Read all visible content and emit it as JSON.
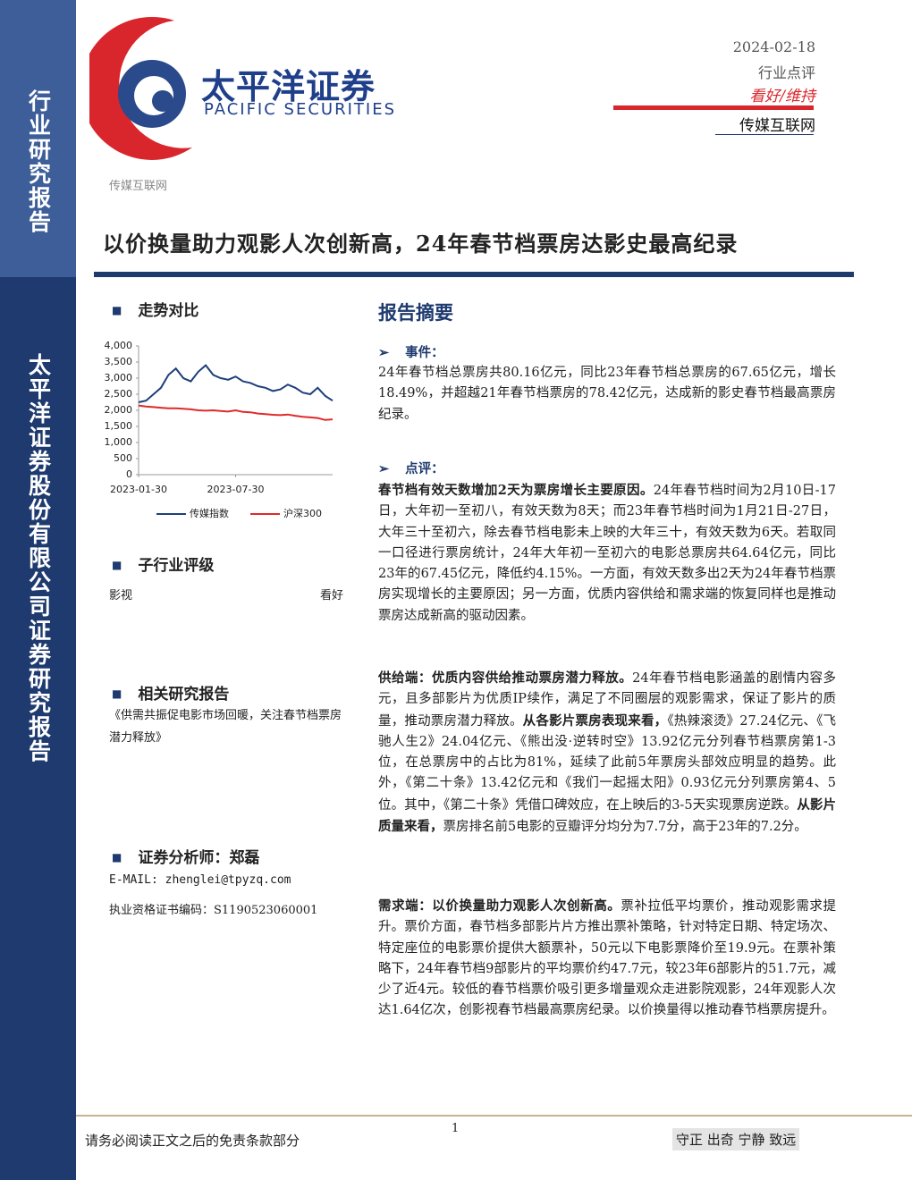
{
  "sidebar": {
    "top": "行业研究报告",
    "bottom": "太平洋证券股份有限公司证券研究报告"
  },
  "header": {
    "logo_cn": "太平洋证券",
    "logo_en": "PACIFIC SECURITIES",
    "date": "2024-02-18",
    "report_type": "行业点评",
    "rating": "看好/维持",
    "sector": "传媒互联网"
  },
  "category": "传媒互联网",
  "title": "以价换量助力观影人次创新高，24年春节档票房达影史最高纪录",
  "trend": {
    "heading": "走势对比",
    "chart": {
      "type": "line",
      "categories": [
        "2023-01-30",
        null,
        null,
        null,
        null,
        null,
        null,
        null,
        null,
        null,
        null,
        null,
        null,
        "2023-07-30",
        null,
        null,
        null,
        null,
        null,
        null,
        null,
        null,
        null,
        null,
        null,
        null,
        null
      ],
      "series": [
        {
          "name": "传媒指数",
          "color": "#1f3f7a",
          "values": [
            2250,
            2300,
            2500,
            2700,
            3100,
            3300,
            3000,
            2900,
            3200,
            3400,
            3100,
            3000,
            2950,
            3050,
            2900,
            2850,
            2750,
            2700,
            2600,
            2650,
            2800,
            2700,
            2550,
            2500,
            2700,
            2450,
            2300
          ]
        },
        {
          "name": "沪深300",
          "color": "#e02a2a",
          "values": [
            2150,
            2120,
            2100,
            2080,
            2060,
            2060,
            2050,
            2030,
            2000,
            1990,
            2000,
            1980,
            1960,
            2000,
            1950,
            1940,
            1900,
            1880,
            1860,
            1850,
            1870,
            1830,
            1800,
            1780,
            1760,
            1700,
            1720
          ]
        }
      ],
      "ylim": [
        0,
        4000
      ],
      "yticks": [
        0,
        500,
        {
          "value": 1000,
          "label": "1,000"
        },
        {
          "value": 1500,
          "label": "1,500"
        },
        {
          "value": 2000,
          "label": "2,000"
        },
        {
          "value": 2500,
          "label": "2,500"
        },
        {
          "value": 3000,
          "label": "3,000"
        },
        {
          "value": 3500,
          "label": "3,500"
        },
        {
          "value": 4000,
          "label": "4,000"
        }
      ]
    }
  },
  "sub_rating": {
    "heading": "子行业评级",
    "rows": [
      [
        "影视",
        "看好"
      ]
    ]
  },
  "related": {
    "heading": "相关研究报告",
    "items": [
      "《供需共振促电影市场回暖，关注春节档票房潜力释放》"
    ]
  },
  "analyst": {
    "heading": "证券分析师：郑磊",
    "email": "E-MAIL: zhenglei@tpyzq.com",
    "license": "执业资格证书编码：S1190523060001"
  },
  "summary": {
    "heading": "报告摘要",
    "sections": [
      {
        "label": "事件：",
        "paragraphs": [
          [
            {
              "text": "24年春节档总票房共80.16亿元，同比23年春节档总票房的67.65亿元，增长18.49%，并超越21年春节档票房的78.42亿元，达成新的影史春节档最高票房纪录。"
            }
          ]
        ]
      },
      {
        "label": "点评：",
        "paragraphs": [
          [
            {
              "text": "春节档有效天数增加2天为票房增长主要原因。",
              "bold": true
            },
            {
              "text": "24年春节档时间为2月10日-17日，大年初一至初八，有效天数为8天；而23年春节档时间为1月21日-27日，大年三十至初六，除去春节档电影未上映的大年三十，有效天数为6天。若取同一口径进行票房统计，24年大年初一至初六的电影总票房共64.64亿元，同比23年的67.45亿元，降低约4.15%。一方面，有效天数多出2天为24年春节档票房实现增长的主要原因；另一方面，优质内容供给和需求端的恢复同样也是推动票房达成新高的驱动因素。"
            }
          ],
          [
            {
              "text": "供给端：优质内容供给推动票房潜力释放。",
              "bold": true
            },
            {
              "text": "24年春节档电影涵盖的剧情内容多元，且多部影片为优质IP续作，满足了不同圈层的观影需求，保证了影片的质量，推动票房潜力释放。"
            },
            {
              "text": "从各影片票房表现来看，",
              "bold": true
            },
            {
              "text": "《热辣滚烫》27.24亿元、《飞驰人生2》24.04亿元、《熊出没·逆转时空》13.92亿元分列春节档票房第1-3位，在总票房中的占比为81%，延续了此前5年票房头部效应明显的趋势。此外，《第二十条》13.42亿元和《我们一起摇太阳》0.93亿元分列票房第4、5位。其中，《第二十条》凭借口碑效应，在上映后的3-5天实现票房逆跌。"
            },
            {
              "text": "从影片质量来看，",
              "bold": true
            },
            {
              "text": "票房排名前5电影的豆瓣评分均分为7.7分，高于23年的7.2分。"
            }
          ],
          [
            {
              "text": "需求端：以价换量助力观影人次创新高。",
              "bold": true
            },
            {
              "text": "票补拉低平均票价，推动观影需求提升。票价方面，春节档多部影片片方推出票补策略，针对特定日期、特定场次、特定座位的电影票价提供大额票补，50元以下电影票降价至19.9元。在票补策略下，24年春节档9部影片的平均票价约47.7元，较23年6部影片的51.7元，减少了近4元。较低的春节档票价吸引更多增量观众走进影院观影，24年观影人次达1.64亿次，创影视春节档最高票房纪录。以价换量得以推动春节档票房提升。"
            }
          ]
        ]
      }
    ]
  },
  "footer": {
    "disclaimer": "请务必阅读正文之后的免责条款部分",
    "page": 1,
    "motto": "守正 出奇 宁静 致远"
  }
}
